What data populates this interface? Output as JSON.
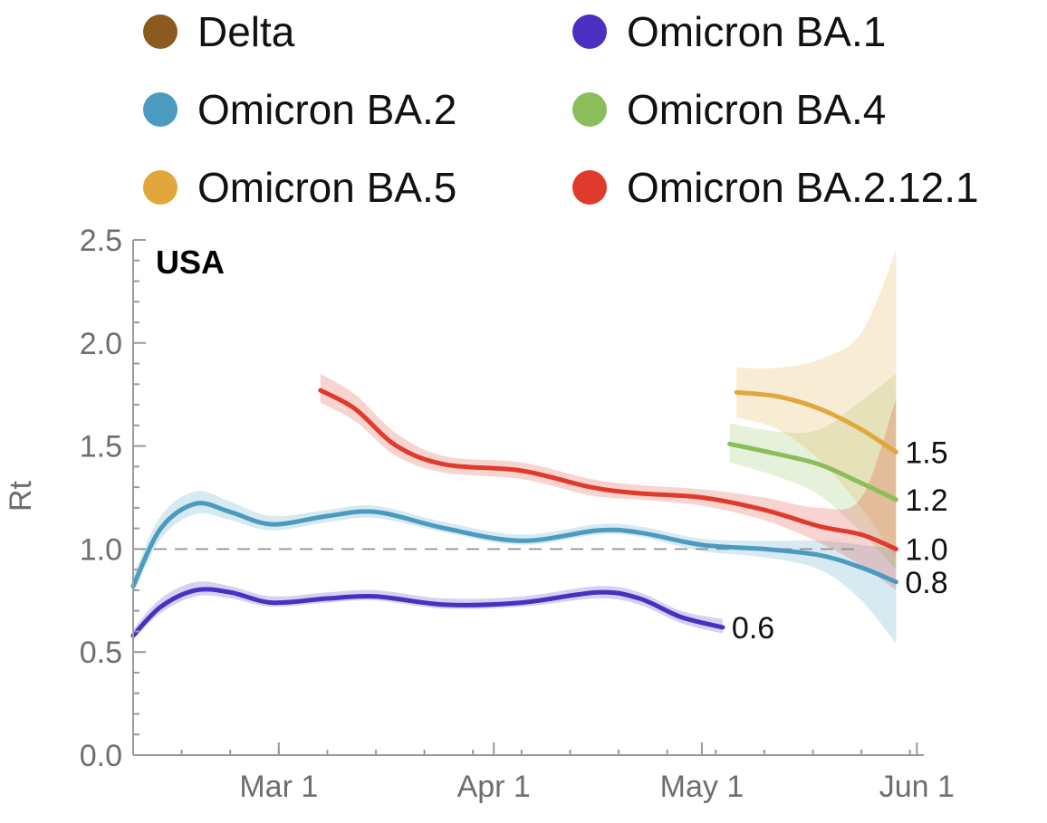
{
  "chart_data": {
    "type": "line",
    "region_label": "USA",
    "ylabel": "Rt",
    "xlabel": "",
    "ylim": [
      0,
      2.5
    ],
    "yticks": [
      "0.0",
      "0.5",
      "1.0",
      "1.5",
      "2.0",
      "2.5"
    ],
    "xlim": [
      "2022-02-08",
      "2022-06-02"
    ],
    "xticks": [
      {
        "date": "2022-03-01",
        "label": "Mar 1"
      },
      {
        "date": "2022-04-01",
        "label": "Apr 1"
      },
      {
        "date": "2022-05-01",
        "label": "May 1"
      },
      {
        "date": "2022-06-01",
        "label": "Jun 1"
      }
    ],
    "reference_line": {
      "y": 1.0,
      "style": "dashed"
    },
    "legend_placement": "top",
    "series": [
      {
        "name": "Delta",
        "color": "#8B5A1E",
        "end_label": "",
        "points": []
      },
      {
        "name": "Omicron BA.1",
        "color": "#4A2FC0",
        "end_label": "0.6",
        "points": [
          {
            "x": "2022-02-08",
            "y": 0.58,
            "lo": 0.56,
            "hi": 0.61
          },
          {
            "x": "2022-02-12",
            "y": 0.72,
            "lo": 0.69,
            "hi": 0.76
          },
          {
            "x": "2022-02-17",
            "y": 0.8,
            "lo": 0.77,
            "hi": 0.84
          },
          {
            "x": "2022-02-22",
            "y": 0.79,
            "lo": 0.76,
            "hi": 0.82
          },
          {
            "x": "2022-02-28",
            "y": 0.74,
            "lo": 0.72,
            "hi": 0.77
          },
          {
            "x": "2022-03-08",
            "y": 0.76,
            "lo": 0.74,
            "hi": 0.79
          },
          {
            "x": "2022-03-15",
            "y": 0.77,
            "lo": 0.75,
            "hi": 0.8
          },
          {
            "x": "2022-03-25",
            "y": 0.73,
            "lo": 0.71,
            "hi": 0.76
          },
          {
            "x": "2022-04-05",
            "y": 0.74,
            "lo": 0.72,
            "hi": 0.77
          },
          {
            "x": "2022-04-16",
            "y": 0.79,
            "lo": 0.76,
            "hi": 0.82
          },
          {
            "x": "2022-04-22",
            "y": 0.76,
            "lo": 0.73,
            "hi": 0.79
          },
          {
            "x": "2022-04-28",
            "y": 0.67,
            "lo": 0.64,
            "hi": 0.7
          },
          {
            "x": "2022-05-04",
            "y": 0.62,
            "lo": 0.59,
            "hi": 0.66
          }
        ]
      },
      {
        "name": "Omicron BA.2",
        "color": "#4B9AC0",
        "end_label": "0.8",
        "points": [
          {
            "x": "2022-02-08",
            "y": 0.82,
            "lo": 0.78,
            "hi": 0.87
          },
          {
            "x": "2022-02-12",
            "y": 1.1,
            "lo": 1.05,
            "hi": 1.16
          },
          {
            "x": "2022-02-17",
            "y": 1.22,
            "lo": 1.17,
            "hi": 1.28
          },
          {
            "x": "2022-02-22",
            "y": 1.18,
            "lo": 1.14,
            "hi": 1.23
          },
          {
            "x": "2022-02-28",
            "y": 1.12,
            "lo": 1.09,
            "hi": 1.16
          },
          {
            "x": "2022-03-08",
            "y": 1.16,
            "lo": 1.13,
            "hi": 1.19
          },
          {
            "x": "2022-03-15",
            "y": 1.18,
            "lo": 1.15,
            "hi": 1.21
          },
          {
            "x": "2022-03-25",
            "y": 1.1,
            "lo": 1.08,
            "hi": 1.13
          },
          {
            "x": "2022-04-05",
            "y": 1.04,
            "lo": 1.02,
            "hi": 1.07
          },
          {
            "x": "2022-04-16",
            "y": 1.09,
            "lo": 1.07,
            "hi": 1.12
          },
          {
            "x": "2022-04-22",
            "y": 1.08,
            "lo": 1.06,
            "hi": 1.11
          },
          {
            "x": "2022-05-01",
            "y": 1.02,
            "lo": 0.99,
            "hi": 1.05
          },
          {
            "x": "2022-05-10",
            "y": 1.0,
            "lo": 0.96,
            "hi": 1.04
          },
          {
            "x": "2022-05-18",
            "y": 0.97,
            "lo": 0.9,
            "hi": 1.04
          },
          {
            "x": "2022-05-24",
            "y": 0.91,
            "lo": 0.75,
            "hi": 1.02
          },
          {
            "x": "2022-05-29",
            "y": 0.84,
            "lo": 0.54,
            "hi": 1.0
          }
        ]
      },
      {
        "name": "Omicron BA.4",
        "color": "#8BBE5A",
        "end_label": "1.2",
        "points": [
          {
            "x": "2022-05-05",
            "y": 1.51,
            "lo": 1.42,
            "hi": 1.61
          },
          {
            "x": "2022-05-12",
            "y": 1.46,
            "lo": 1.35,
            "hi": 1.57
          },
          {
            "x": "2022-05-18",
            "y": 1.41,
            "lo": 1.26,
            "hi": 1.58
          },
          {
            "x": "2022-05-24",
            "y": 1.32,
            "lo": 1.08,
            "hi": 1.72
          },
          {
            "x": "2022-05-29",
            "y": 1.24,
            "lo": 0.9,
            "hi": 1.85
          }
        ]
      },
      {
        "name": "Omicron BA.5",
        "color": "#E2A73C",
        "end_label": "1.5",
        "points": [
          {
            "x": "2022-05-06",
            "y": 1.76,
            "lo": 1.64,
            "hi": 1.88
          },
          {
            "x": "2022-05-12",
            "y": 1.74,
            "lo": 1.58,
            "hi": 1.88
          },
          {
            "x": "2022-05-18",
            "y": 1.68,
            "lo": 1.43,
            "hi": 1.92
          },
          {
            "x": "2022-05-24",
            "y": 1.58,
            "lo": 1.2,
            "hi": 2.05
          },
          {
            "x": "2022-05-29",
            "y": 1.47,
            "lo": 0.95,
            "hi": 2.45
          }
        ]
      },
      {
        "name": "Omicron BA.2.12.1",
        "color": "#E03A2C",
        "end_label": "1.0",
        "points": [
          {
            "x": "2022-03-07",
            "y": 1.77,
            "lo": 1.71,
            "hi": 1.85
          },
          {
            "x": "2022-03-12",
            "y": 1.68,
            "lo": 1.62,
            "hi": 1.75
          },
          {
            "x": "2022-03-18",
            "y": 1.5,
            "lo": 1.45,
            "hi": 1.56
          },
          {
            "x": "2022-03-25",
            "y": 1.41,
            "lo": 1.37,
            "hi": 1.45
          },
          {
            "x": "2022-04-05",
            "y": 1.38,
            "lo": 1.34,
            "hi": 1.42
          },
          {
            "x": "2022-04-15",
            "y": 1.3,
            "lo": 1.26,
            "hi": 1.34
          },
          {
            "x": "2022-04-22",
            "y": 1.27,
            "lo": 1.24,
            "hi": 1.31
          },
          {
            "x": "2022-05-01",
            "y": 1.25,
            "lo": 1.21,
            "hi": 1.29
          },
          {
            "x": "2022-05-10",
            "y": 1.19,
            "lo": 1.14,
            "hi": 1.25
          },
          {
            "x": "2022-05-18",
            "y": 1.11,
            "lo": 1.03,
            "hi": 1.2
          },
          {
            "x": "2022-05-24",
            "y": 1.07,
            "lo": 0.92,
            "hi": 1.25
          },
          {
            "x": "2022-05-29",
            "y": 1.0,
            "lo": 0.8,
            "hi": 1.73
          }
        ]
      }
    ]
  }
}
